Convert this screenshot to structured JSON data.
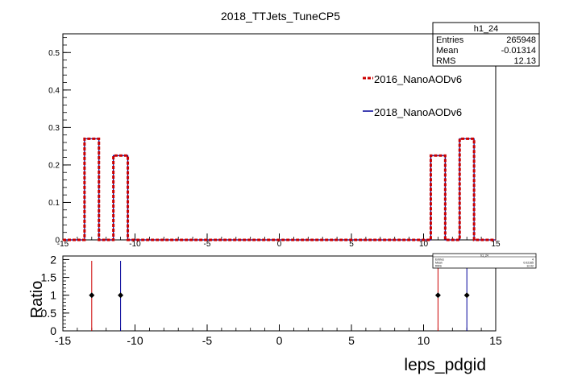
{
  "title": "2018_TTJets_TuneCP5",
  "statbox": {
    "name": "h1_24",
    "rows": [
      {
        "label": "Entries",
        "value": "265948"
      },
      {
        "label": "Mean",
        "value": "-0.01314"
      },
      {
        "label": "RMS",
        "value": "12.13"
      }
    ]
  },
  "legend": [
    {
      "name": "2016_NanoAODv6",
      "color": "#cc0000",
      "style": "dashed"
    },
    {
      "name": "2018_NanoAODv6",
      "color": "#000099",
      "style": "solid"
    }
  ],
  "chart_data": [
    {
      "type": "histogram",
      "title": "2018_TTJets_TuneCP5",
      "xlim": [
        -15,
        15
      ],
      "ylim": [
        0,
        0.55
      ],
      "yticks": [
        0,
        0.1,
        0.2,
        0.3,
        0.4,
        0.5
      ],
      "ytick_labels": [
        "0",
        "0.1",
        "0.2",
        "0.3",
        "0.4",
        "0.5"
      ],
      "xticks": [
        -15,
        -10,
        -5,
        0,
        5,
        10,
        15
      ],
      "xtick_labels": [
        "-15",
        "-10",
        "-5",
        "0",
        "5",
        "10",
        "15"
      ],
      "bins": [
        {
          "x0": -13.5,
          "x1": -12.5,
          "value": 0.27
        },
        {
          "x0": -11.5,
          "x1": -10.5,
          "value": 0.225
        },
        {
          "x0": 10.5,
          "x1": 11.5,
          "value": 0.225
        },
        {
          "x0": 12.5,
          "x1": 13.5,
          "value": 0.27
        }
      ],
      "series": [
        {
          "name": "2016_NanoAODv6",
          "color": "#cc0000"
        },
        {
          "name": "2018_NanoAODv6",
          "color": "#000099"
        }
      ]
    },
    {
      "type": "scatter",
      "ylabel": "Ratio",
      "xlabel": "leps_pdgid",
      "xlim": [
        -15,
        15
      ],
      "ylim": [
        0,
        2.1
      ],
      "yticks": [
        0,
        0.5,
        1,
        1.5,
        2
      ],
      "ytick_labels": [
        "0",
        "0.5",
        "1",
        "1.5",
        "2"
      ],
      "xticks": [
        -15,
        -10,
        -5,
        0,
        5,
        10,
        15
      ],
      "xtick_labels": [
        "-15",
        "-10",
        "-5",
        "0",
        "5",
        "10",
        "15"
      ],
      "points": [
        {
          "x": -13,
          "y": 1,
          "err_color": "#cc0000"
        },
        {
          "x": -11,
          "y": 1,
          "err_color": "#000099"
        },
        {
          "x": 11,
          "y": 1,
          "err_color": "#cc0000"
        },
        {
          "x": 13,
          "y": 1,
          "err_color": "#000099"
        }
      ],
      "statbox": {
        "name": "h1_24",
        "rows": [
          {
            "label": "Entries",
            "value": "4"
          },
          {
            "label": "Mean",
            "value": "0.02165"
          },
          {
            "label": "RMS",
            "value": "12.02"
          }
        ]
      }
    }
  ]
}
